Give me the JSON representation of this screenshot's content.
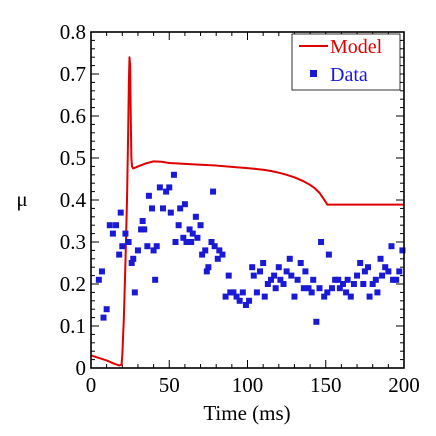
{
  "chart_data": {
    "type": "scatter",
    "xlabel": "Time (ms)",
    "ylabel": "μ",
    "xlim": [
      0,
      200
    ],
    "ylim": [
      0,
      0.8
    ],
    "grid": false,
    "legend_position": "top-right",
    "x_ticks": [
      {
        "value": 0,
        "label": "0"
      },
      {
        "value": 50,
        "label": "50"
      },
      {
        "value": 100,
        "label": "100"
      },
      {
        "value": 150,
        "label": "150"
      },
      {
        "value": 200,
        "label": "200"
      }
    ],
    "y_ticks": [
      {
        "value": 0,
        "label": "0"
      },
      {
        "value": 0.1,
        "label": "0.1"
      },
      {
        "value": 0.2,
        "label": "0.2"
      },
      {
        "value": 0.3,
        "label": "0.3"
      },
      {
        "value": 0.4,
        "label": "0.4"
      },
      {
        "value": 0.5,
        "label": "0.5"
      },
      {
        "value": 0.6,
        "label": "0.6"
      },
      {
        "value": 0.7,
        "label": "0.7"
      },
      {
        "value": 0.8,
        "label": "0.8"
      }
    ],
    "series": [
      {
        "name": "Model",
        "kind": "line",
        "color": "#e00000",
        "points": [
          [
            0,
            0.03
          ],
          [
            5,
            0.024
          ],
          [
            10,
            0.018
          ],
          [
            15,
            0.01
          ],
          [
            18,
            0.006
          ],
          [
            19.5,
            0.008
          ],
          [
            20,
            0.03
          ],
          [
            21,
            0.12
          ],
          [
            22,
            0.25
          ],
          [
            23,
            0.4
          ],
          [
            23.7,
            0.55
          ],
          [
            24.2,
            0.68
          ],
          [
            24.6,
            0.74
          ],
          [
            25,
            0.72
          ],
          [
            25.4,
            0.6
          ],
          [
            25.8,
            0.5
          ],
          [
            26.2,
            0.48
          ],
          [
            27,
            0.475
          ],
          [
            30,
            0.48
          ],
          [
            35,
            0.487
          ],
          [
            40,
            0.492
          ],
          [
            45,
            0.491
          ],
          [
            50,
            0.488
          ],
          [
            60,
            0.486
          ],
          [
            70,
            0.484
          ],
          [
            80,
            0.482
          ],
          [
            90,
            0.479
          ],
          [
            100,
            0.476
          ],
          [
            110,
            0.472
          ],
          [
            115,
            0.469
          ],
          [
            120,
            0.465
          ],
          [
            125,
            0.46
          ],
          [
            130,
            0.454
          ],
          [
            135,
            0.446
          ],
          [
            140,
            0.436
          ],
          [
            143,
            0.428
          ],
          [
            146,
            0.417
          ],
          [
            148,
            0.406
          ],
          [
            150,
            0.395
          ],
          [
            151,
            0.389
          ],
          [
            155,
            0.389
          ],
          [
            160,
            0.389
          ],
          [
            170,
            0.389
          ],
          [
            180,
            0.389
          ],
          [
            190,
            0.389
          ],
          [
            200,
            0.389
          ]
        ]
      },
      {
        "name": "Data",
        "kind": "scatter",
        "color": "#1a1ad6",
        "points": [
          [
            5,
            0.21
          ],
          [
            7,
            0.23
          ],
          [
            8,
            0.12
          ],
          [
            10,
            0.14
          ],
          [
            12,
            0.34
          ],
          [
            14,
            0.32
          ],
          [
            16,
            0.34
          ],
          [
            18,
            0.27
          ],
          [
            19,
            0.37
          ],
          [
            20,
            0.29
          ],
          [
            22,
            0.32
          ],
          [
            24,
            0.3
          ],
          [
            26,
            0.25
          ],
          [
            27,
            0.26
          ],
          [
            28,
            0.18
          ],
          [
            30,
            0.28
          ],
          [
            32,
            0.33
          ],
          [
            33,
            0.35
          ],
          [
            34,
            0.33
          ],
          [
            36,
            0.29
          ],
          [
            37,
            0.41
          ],
          [
            39,
            0.38
          ],
          [
            40,
            0.28
          ],
          [
            41,
            0.21
          ],
          [
            42,
            0.29
          ],
          [
            44,
            0.43
          ],
          [
            46,
            0.38
          ],
          [
            48,
            0.42
          ],
          [
            50,
            0.43
          ],
          [
            51,
            0.37
          ],
          [
            53,
            0.46
          ],
          [
            54,
            0.3
          ],
          [
            56,
            0.34
          ],
          [
            57,
            0.38
          ],
          [
            59,
            0.31
          ],
          [
            60,
            0.39
          ],
          [
            61,
            0.3
          ],
          [
            63,
            0.33
          ],
          [
            64,
            0.3
          ],
          [
            65,
            0.32
          ],
          [
            67,
            0.36
          ],
          [
            68,
            0.31
          ],
          [
            70,
            0.34
          ],
          [
            71,
            0.27
          ],
          [
            73,
            0.28
          ],
          [
            74,
            0.23
          ],
          [
            75,
            0.24
          ],
          [
            77,
            0.3
          ],
          [
            78,
            0.42
          ],
          [
            79,
            0.29
          ],
          [
            81,
            0.26
          ],
          [
            82,
            0.28
          ],
          [
            84,
            0.27
          ],
          [
            86,
            0.17
          ],
          [
            88,
            0.22
          ],
          [
            89,
            0.18
          ],
          [
            91,
            0.18
          ],
          [
            93,
            0.17
          ],
          [
            95,
            0.16
          ],
          [
            97,
            0.18
          ],
          [
            99,
            0.15
          ],
          [
            101,
            0.16
          ],
          [
            103,
            0.24
          ],
          [
            104,
            0.22
          ],
          [
            106,
            0.18
          ],
          [
            108,
            0.23
          ],
          [
            110,
            0.25
          ],
          [
            111,
            0.17
          ],
          [
            113,
            0.2
          ],
          [
            115,
            0.21
          ],
          [
            117,
            0.22
          ],
          [
            118,
            0.19
          ],
          [
            120,
            0.24
          ],
          [
            121,
            0.21
          ],
          [
            123,
            0.2
          ],
          [
            125,
            0.23
          ],
          [
            127,
            0.26
          ],
          [
            128,
            0.22
          ],
          [
            130,
            0.17
          ],
          [
            132,
            0.21
          ],
          [
            134,
            0.25
          ],
          [
            136,
            0.19
          ],
          [
            137,
            0.23
          ],
          [
            139,
            0.19
          ],
          [
            141,
            0.18
          ],
          [
            142,
            0.21
          ],
          [
            144,
            0.11
          ],
          [
            146,
            0.19
          ],
          [
            147,
            0.3
          ],
          [
            149,
            0.17
          ],
          [
            151,
            0.18
          ],
          [
            152,
            0.27
          ],
          [
            154,
            0.19
          ],
          [
            156,
            0.21
          ],
          [
            158,
            0.21
          ],
          [
            159,
            0.19
          ],
          [
            161,
            0.2
          ],
          [
            163,
            0.18
          ],
          [
            164,
            0.21
          ],
          [
            166,
            0.17
          ],
          [
            168,
            0.2
          ],
          [
            170,
            0.22
          ],
          [
            172,
            0.25
          ],
          [
            174,
            0.2
          ],
          [
            175,
            0.23
          ],
          [
            177,
            0.24
          ],
          [
            178,
            0.17
          ],
          [
            180,
            0.2
          ],
          [
            182,
            0.21
          ],
          [
            183,
            0.18
          ],
          [
            185,
            0.26
          ],
          [
            186,
            0.22
          ],
          [
            188,
            0.24
          ],
          [
            190,
            0.23
          ],
          [
            192,
            0.29
          ],
          [
            193,
            0.21
          ],
          [
            195,
            0.21
          ],
          [
            197,
            0.23
          ],
          [
            199,
            0.28
          ]
        ]
      }
    ]
  }
}
